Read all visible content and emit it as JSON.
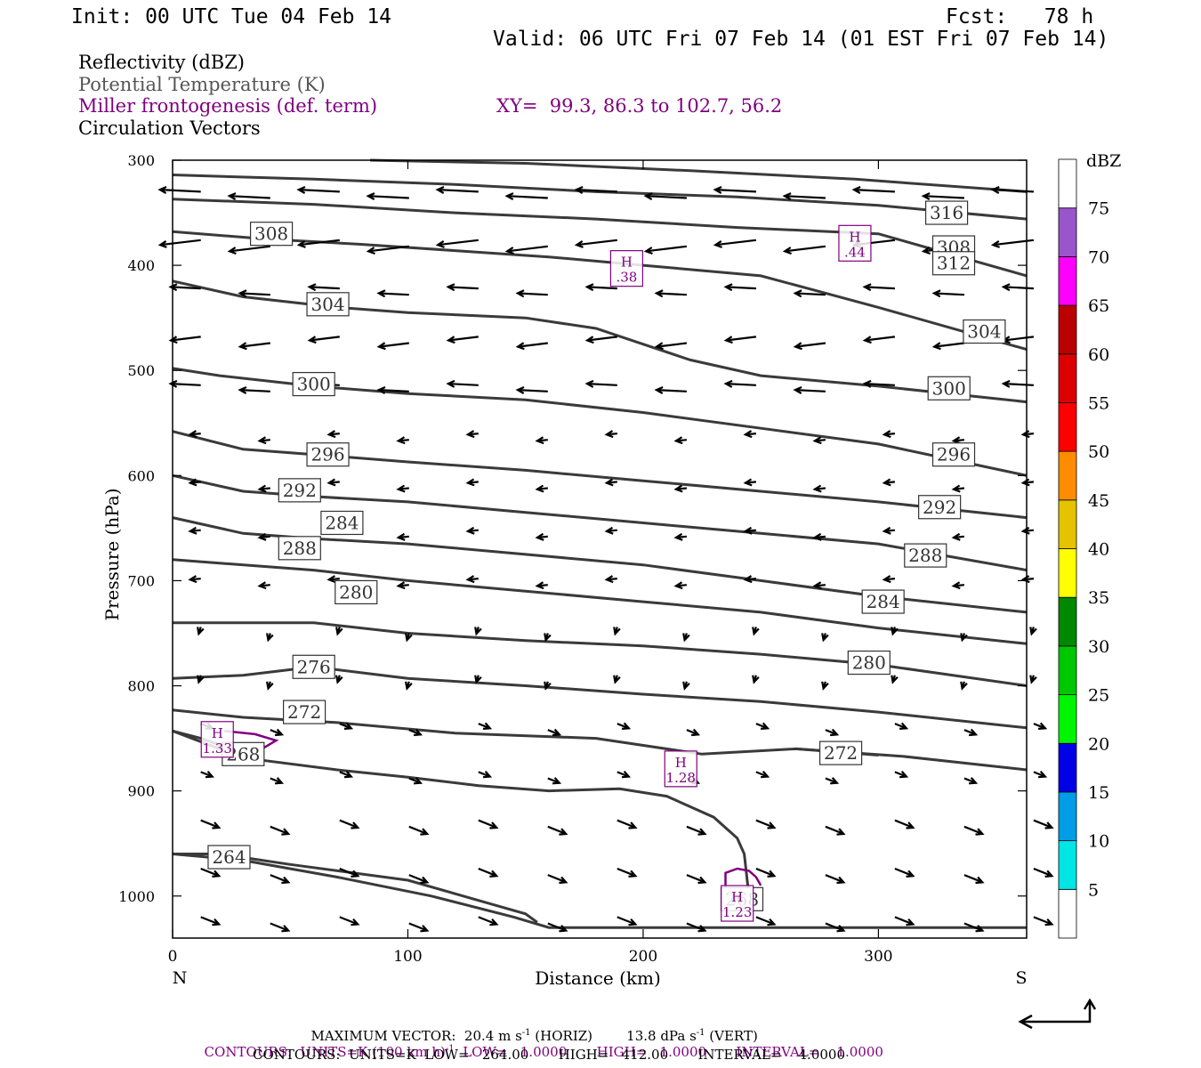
{
  "header": {
    "init": "Init: 00 UTC Tue 04 Feb 14",
    "fcst": "Fcst:   78 h",
    "valid": "Valid: 06 UTC Fri 07 Feb 14 (01 EST Fri 07 Feb 14)"
  },
  "fields": {
    "reflectivity": "Reflectivity (dBZ)",
    "theta": "Potential Temperature (K)",
    "frontogenesis": "Miller frontogenesis (def. term)",
    "xy": "XY=  99.3, 86.3 to 102.7, 56.2",
    "vectors": "Circulation Vectors"
  },
  "footer": {
    "max_vector_prefix": "MAXIMUM VECTOR:  20.4 m s",
    "max_vector_mid": " (HORIZ)        13.8 dPa s",
    "max_vector_suffix": " (VERT)",
    "contours1_prefix": "CONTOURS:  UNITS=K (100 km h)",
    "contours1_suffix": "  LOW=   1.0000       HIGH=   1.0000       INTERVAL=    1.0000",
    "contours2": "CONTOURS:  UNITS=K  LOW=   264.00       HIGH=   412.00       INTERVAL=    4.0000",
    "exp": "-1"
  },
  "colors": {
    "theta_line": "#3a3a3a",
    "frontogenesis": "#800080",
    "vector": "#000000",
    "frame": "#000000"
  },
  "chart_data": {
    "type": "vertical cross-section",
    "xlabel": "Distance (km)",
    "ylabel": "Pressure (hPa)",
    "xlim": [
      0,
      363
    ],
    "ylim": [
      1040,
      300
    ],
    "x_ticks": [
      "0",
      "100",
      "200",
      "300"
    ],
    "y_ticks": [
      "300",
      "400",
      "500",
      "600",
      "700",
      "800",
      "900",
      "1000"
    ],
    "left_end_label": "N",
    "right_end_label": "S",
    "colorbar": {
      "title": "dBZ",
      "levels": [
        "5",
        "10",
        "15",
        "20",
        "25",
        "30",
        "35",
        "40",
        "45",
        "50",
        "55",
        "60",
        "65",
        "70",
        "75"
      ],
      "colors": [
        "#ffffff",
        "#00e5e5",
        "#009ee6",
        "#0000e6",
        "#00f500",
        "#00c800",
        "#008800",
        "#ffff00",
        "#e6c300",
        "#ff8c00",
        "#ff0000",
        "#dd0000",
        "#bb0000",
        "#ff00ff",
        "#9955cc",
        "#ffffff"
      ]
    },
    "theta_contours": [
      {
        "label": "264",
        "points": [
          [
            0,
            960
          ],
          [
            20,
            960
          ],
          [
            50,
            970
          ],
          [
            100,
            985
          ],
          [
            150,
            1017
          ],
          [
            155,
            1025
          ]
        ],
        "label_at": [
          24,
          963
        ]
      },
      {
        "label": "",
        "points": [
          [
            0,
            960
          ],
          [
            30,
            966
          ],
          [
            70,
            982
          ],
          [
            110,
            1000
          ],
          [
            145,
            1020
          ],
          [
            160,
            1030
          ],
          [
            240,
            1030
          ],
          [
            363,
            1030
          ]
        ],
        "label_at": null
      },
      {
        "label": "268",
        "points": [
          [
            0,
            843
          ],
          [
            20,
            860
          ],
          [
            35,
            870
          ],
          [
            70,
            880
          ],
          [
            100,
            887
          ],
          [
            130,
            895
          ],
          [
            160,
            900
          ],
          [
            190,
            898
          ],
          [
            210,
            905
          ],
          [
            230,
            925
          ],
          [
            240,
            945
          ],
          [
            243,
            960
          ],
          [
            245,
            1000
          ]
        ],
        "label_at": [
          242,
          1003
        ]
      },
      {
        "label": "268",
        "points": [
          [
            0,
            843
          ],
          [
            12,
            850
          ],
          [
            25,
            860
          ],
          [
            33,
            866
          ]
        ],
        "label_at": [
          30,
          865
        ]
      },
      {
        "label": "272",
        "points": [
          [
            0,
            823
          ],
          [
            30,
            830
          ],
          [
            70,
            835
          ],
          [
            120,
            845
          ],
          [
            180,
            850
          ],
          [
            225,
            865
          ],
          [
            265,
            860
          ],
          [
            310,
            867
          ],
          [
            363,
            880
          ]
        ],
        "label_at": [
          56,
          825
        ]
      },
      {
        "label": "272",
        "points": [
          [
            265,
            860
          ],
          [
            300,
            866
          ]
        ],
        "label_at": [
          284,
          864
        ]
      },
      {
        "label": "276",
        "points": [
          [
            0,
            793
          ],
          [
            30,
            790
          ],
          [
            60,
            782
          ],
          [
            100,
            793
          ],
          [
            150,
            800
          ],
          [
            200,
            808
          ],
          [
            250,
            815
          ],
          [
            300,
            825
          ],
          [
            363,
            840
          ]
        ],
        "label_at": [
          60,
          782
        ]
      },
      {
        "label": "280",
        "points": [
          [
            0,
            740
          ],
          [
            60,
            740
          ],
          [
            100,
            750
          ],
          [
            150,
            757
          ],
          [
            200,
            762
          ],
          [
            250,
            770
          ],
          [
            300,
            780
          ],
          [
            363,
            800
          ]
        ],
        "label_at": [
          78,
          711
        ]
      },
      {
        "label": "280",
        "points": [
          [
            290,
            778
          ]
        ],
        "label_at": [
          296,
          778
        ]
      },
      {
        "label": "284",
        "points": [
          [
            0,
            680
          ],
          [
            60,
            690
          ],
          [
            100,
            700
          ],
          [
            150,
            710
          ],
          [
            200,
            720
          ],
          [
            250,
            730
          ],
          [
            300,
            745
          ],
          [
            363,
            760
          ]
        ],
        "label_at": [
          72,
          645
        ]
      },
      {
        "label": "284",
        "points": [
          [
            300,
            720
          ]
        ],
        "label_at": [
          302,
          720
        ]
      },
      {
        "label": "288",
        "points": [
          [
            0,
            640
          ],
          [
            30,
            655
          ],
          [
            60,
            660
          ],
          [
            100,
            665
          ],
          [
            150,
            675
          ],
          [
            200,
            685
          ],
          [
            250,
            700
          ],
          [
            300,
            715
          ],
          [
            363,
            730
          ]
        ],
        "label_at": [
          54,
          669
        ]
      },
      {
        "label": "288",
        "points": [
          [
            320,
            676
          ]
        ],
        "label_at": [
          320,
          676
        ]
      },
      {
        "label": "292",
        "points": [
          [
            0,
            600
          ],
          [
            30,
            615
          ],
          [
            60,
            620
          ],
          [
            100,
            625
          ],
          [
            150,
            635
          ],
          [
            200,
            645
          ],
          [
            250,
            655
          ],
          [
            300,
            665
          ],
          [
            363,
            690
          ]
        ],
        "label_at": [
          54,
          614
        ]
      },
      {
        "label": "292",
        "points": [
          [
            325,
            630
          ]
        ],
        "label_at": [
          326,
          630
        ]
      },
      {
        "label": "296",
        "points": [
          [
            0,
            558
          ],
          [
            30,
            575
          ],
          [
            60,
            580
          ],
          [
            100,
            587
          ],
          [
            150,
            595
          ],
          [
            200,
            605
          ],
          [
            250,
            615
          ],
          [
            300,
            625
          ],
          [
            363,
            640
          ]
        ],
        "label_at": [
          66,
          580
        ]
      },
      {
        "label": "296",
        "points": [
          [
            332,
            580
          ]
        ],
        "label_at": [
          332,
          580
        ]
      },
      {
        "label": "300",
        "points": [
          [
            0,
            498
          ],
          [
            20,
            505
          ],
          [
            60,
            515
          ],
          [
            100,
            522
          ],
          [
            150,
            528
          ],
          [
            200,
            540
          ],
          [
            250,
            555
          ],
          [
            300,
            570
          ],
          [
            363,
            600
          ]
        ],
        "label_at": [
          60,
          513
        ]
      },
      {
        "label": "300",
        "points": [
          [
            330,
            517
          ]
        ],
        "label_at": [
          330,
          517
        ]
      },
      {
        "label": "304",
        "points": [
          [
            0,
            415
          ],
          [
            30,
            430
          ],
          [
            70,
            440
          ],
          [
            100,
            445
          ],
          [
            150,
            450
          ],
          [
            180,
            460
          ],
          [
            220,
            490
          ],
          [
            250,
            505
          ],
          [
            300,
            515
          ],
          [
            363,
            530
          ]
        ],
        "label_at": [
          66,
          437
        ]
      },
      {
        "label": "304",
        "points": [
          [
            345,
            463
          ]
        ],
        "label_at": [
          345,
          463
        ]
      },
      {
        "label": "308",
        "points": [
          [
            0,
            368
          ],
          [
            40,
            375
          ],
          [
            80,
            380
          ],
          [
            120,
            386
          ],
          [
            160,
            392
          ],
          [
            200,
            400
          ],
          [
            250,
            410
          ],
          [
            300,
            440
          ],
          [
            363,
            480
          ]
        ],
        "label_at": [
          42,
          370
        ]
      },
      {
        "label": "308",
        "points": [
          [
            332,
            383
          ]
        ],
        "label_at": [
          332,
          383
        ]
      },
      {
        "label": "312",
        "points": [
          [
            0,
            337
          ],
          [
            60,
            342
          ],
          [
            120,
            350
          ],
          [
            180,
            356
          ],
          [
            240,
            364
          ],
          [
            300,
            370
          ],
          [
            363,
            410
          ]
        ],
        "label_at": [
          332,
          398
        ]
      },
      {
        "label": "316",
        "points": [
          [
            0,
            314
          ],
          [
            60,
            318
          ],
          [
            120,
            323
          ],
          [
            180,
            330
          ],
          [
            240,
            335
          ],
          [
            300,
            343
          ],
          [
            363,
            356
          ]
        ],
        "label_at": [
          329,
          350
        ]
      },
      {
        "label": "",
        "points": [
          [
            84,
            300
          ],
          [
            150,
            303
          ],
          [
            220,
            310
          ],
          [
            290,
            318
          ],
          [
            363,
            330
          ]
        ],
        "label_at": null
      }
    ],
    "frontogenesis_maxima": [
      {
        "label": "H",
        "value": ".44",
        "x": 290,
        "y": 379
      },
      {
        "label": "H",
        "value": ".38",
        "x": 193,
        "y": 403
      },
      {
        "label": "H",
        "value": "1.33",
        "x": 19,
        "y": 851
      },
      {
        "label": "H",
        "value": "1.28",
        "x": 216,
        "y": 879
      },
      {
        "label": "H",
        "value": "1.23",
        "x": 240,
        "y": 1007
      }
    ],
    "frontogenesis_contours": [
      {
        "points": [
          [
            22,
            843
          ],
          [
            35,
            846
          ],
          [
            44,
            852
          ],
          [
            38,
            860
          ],
          [
            30,
            862
          ],
          [
            26,
            858
          ]
        ]
      },
      {
        "points": [
          [
            235,
            1000
          ],
          [
            235,
            978
          ],
          [
            240,
            974
          ],
          [
            245,
            976
          ],
          [
            248,
            982
          ],
          [
            250,
            990
          ]
        ]
      }
    ]
  }
}
